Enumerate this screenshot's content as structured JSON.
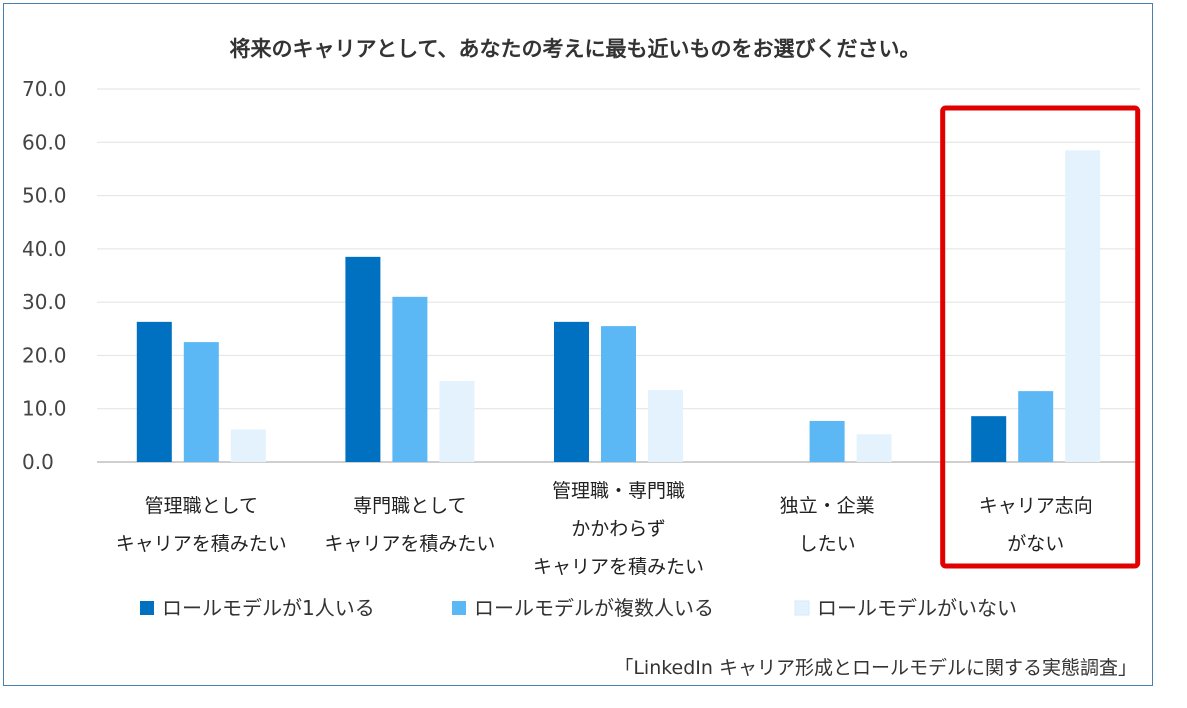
{
  "chart_data": {
    "type": "bar",
    "title": "将来のキャリアとして、あなたの考えに最も近いものをお選びください。",
    "xlabel": "",
    "ylabel": "",
    "ylim": [
      0,
      70
    ],
    "yticks": [
      "0.0",
      "10.0",
      "20.0",
      "30.0",
      "40.0",
      "50.0",
      "60.0",
      "70.0"
    ],
    "grid": true,
    "legend_position": "bottom",
    "categories": [
      [
        "管理職として",
        "キャリアを積みたい"
      ],
      [
        "専門職として",
        "キャリアを積みたい"
      ],
      [
        "管理職・専門職",
        "かかわらず",
        "キャリアを積みたい"
      ],
      [
        "独立・企業",
        "したい"
      ],
      [
        "キャリア志向",
        "がない"
      ]
    ],
    "series": [
      {
        "name": "ロールモデルが1人いる",
        "color": "#0070c0",
        "values": [
          26.3,
          38.5,
          26.3,
          0,
          8.6
        ]
      },
      {
        "name": "ロールモデルが複数人いる",
        "color": "#5bb8f5",
        "values": [
          22.5,
          31.0,
          25.5,
          7.7,
          13.3
        ]
      },
      {
        "name": "ロールモデルがいない",
        "color": "#e3f2fd",
        "values": [
          6.1,
          15.2,
          13.5,
          5.2,
          58.5
        ]
      }
    ],
    "highlight": {
      "category_index": 4,
      "color": "#e00000"
    }
  },
  "source": "「LinkedIn キャリア形成とロールモデルに関する実態調査」"
}
